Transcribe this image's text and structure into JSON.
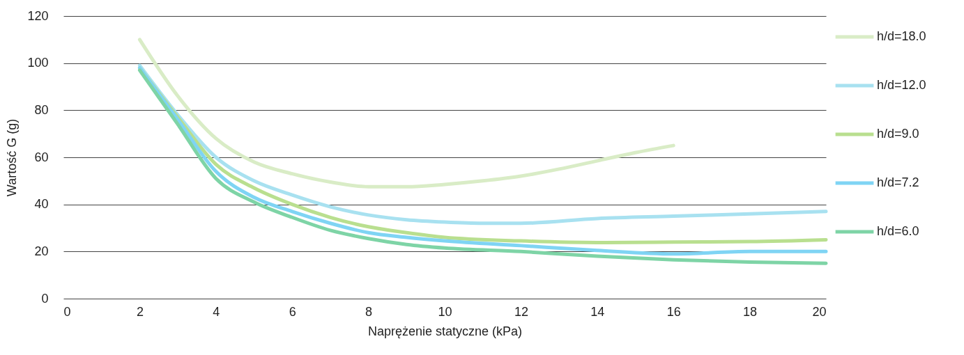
{
  "chart_data": {
    "type": "line",
    "xlabel": "Naprężenie statyczne (kPa)",
    "ylabel": "Wartość G (g)",
    "xlim": [
      0,
      20
    ],
    "xticks": [
      0,
      2,
      4,
      6,
      8,
      10,
      12,
      14,
      16,
      18,
      20
    ],
    "ylim": [
      0,
      120
    ],
    "yticks": [
      0,
      20,
      40,
      60,
      80,
      100,
      120
    ],
    "grid": "y",
    "legend": "right",
    "marker": "none",
    "line_style": "solid",
    "series": [
      {
        "name": "h/d=18.0",
        "color": "#d9ecc6",
        "x": [
          2,
          3,
          4,
          5,
          6,
          7,
          8,
          9,
          10,
          11,
          12,
          13,
          14,
          15,
          16
        ],
        "values": [
          110,
          86,
          68,
          58,
          53,
          49.5,
          47.5,
          47.5,
          48.5,
          50,
          52,
          55,
          58.5,
          62,
          65
        ]
      },
      {
        "name": "h/d=12.0",
        "color": "#a8e1f0",
        "x": [
          2,
          3,
          4,
          5,
          6,
          7,
          8,
          9,
          10,
          11,
          12,
          14,
          16,
          18,
          20
        ],
        "values": [
          99,
          78,
          60,
          50,
          44,
          39,
          35.5,
          33.5,
          32.5,
          32,
          32,
          34,
          35,
          36,
          37
        ]
      },
      {
        "name": "h/d=9.0",
        "color": "#b9df8f",
        "x": [
          2,
          3,
          4,
          5,
          6,
          7,
          8,
          9,
          10,
          12,
          14,
          16,
          18,
          20
        ],
        "values": [
          98,
          77,
          57,
          47,
          40,
          34.5,
          30.5,
          28,
          26,
          24.5,
          23.8,
          24,
          24.2,
          25
        ]
      },
      {
        "name": "h/d=7.2",
        "color": "#7fd4f4",
        "x": [
          2,
          3,
          4,
          5,
          6,
          7,
          8,
          9,
          10,
          12,
          14,
          16,
          18,
          20
        ],
        "values": [
          98,
          76,
          54,
          43,
          37,
          32,
          28,
          26,
          24.5,
          22.5,
          20.5,
          19,
          20,
          20
        ]
      },
      {
        "name": "h/d=6.0",
        "color": "#7ed4a6",
        "x": [
          2,
          3,
          4,
          5,
          6,
          7,
          8,
          9,
          10,
          12,
          14,
          16,
          18,
          20
        ],
        "values": [
          97,
          74,
          51,
          41,
          34.5,
          29,
          25.5,
          23,
          21.5,
          20,
          18,
          16.5,
          15.5,
          15
        ]
      }
    ]
  }
}
